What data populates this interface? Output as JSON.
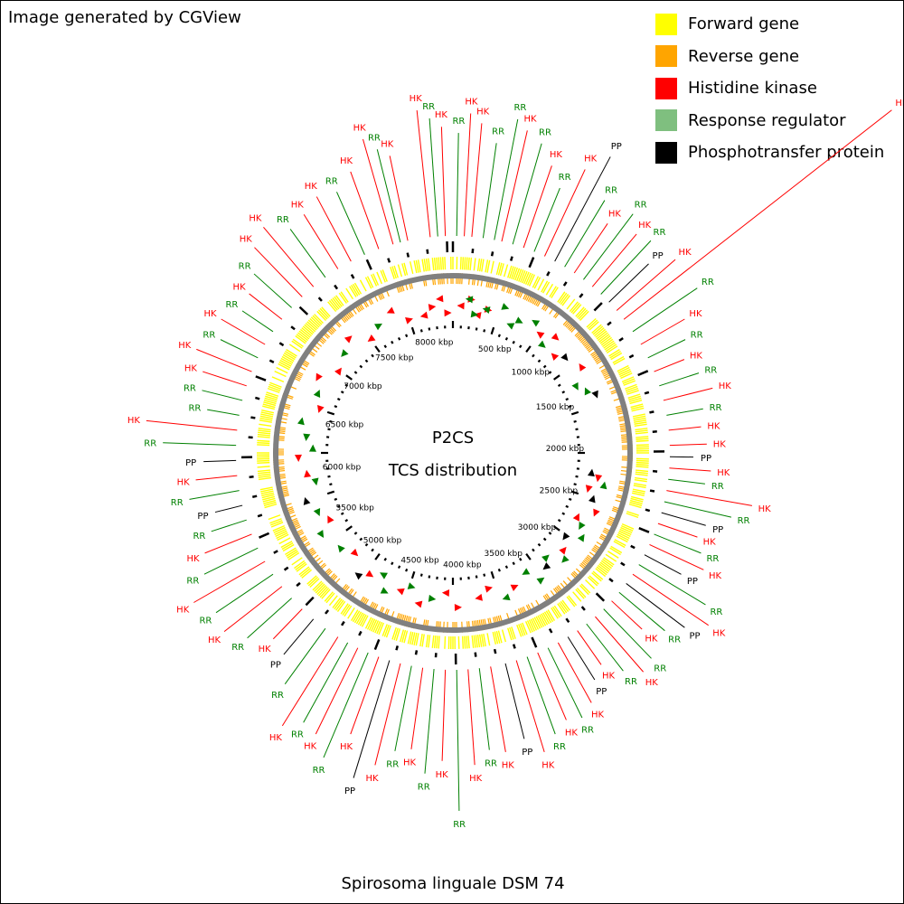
{
  "header": {
    "credit": "Image generated by CGView"
  },
  "legend": [
    {
      "label": "Forward gene",
      "color": "#ffff00"
    },
    {
      "label": "Reverse gene",
      "color": "#ffa500"
    },
    {
      "label": "Histidine kinase",
      "color": "#ff0000"
    },
    {
      "label": "Response regulator",
      "color": "#7fbf7f"
    },
    {
      "label": "Phosphotransfer protein",
      "color": "#000000"
    }
  ],
  "map": {
    "title_line1": "P2CS",
    "title_line2": "TCS distribution",
    "organism": "Spirosoma linguale DSM 74",
    "axis_labels": [
      "500 kbp",
      "1000 kbp",
      "1500 kbp",
      "2000 kbp",
      "2500 kbp",
      "3000 kbp",
      "3500 kbp",
      "4000 kbp",
      "4500 kbp",
      "5000 kbp",
      "5500 kbp",
      "6000 kbp",
      "6500 kbp",
      "7000 kbp",
      "7500 kbp",
      "8000 kbp"
    ],
    "colors": {
      "hk": "#ff0000",
      "rr": "#008000",
      "pp": "#000000",
      "forward": "#ffff00",
      "reverse": "#ffa500",
      "backbone": "#808080"
    }
  }
}
